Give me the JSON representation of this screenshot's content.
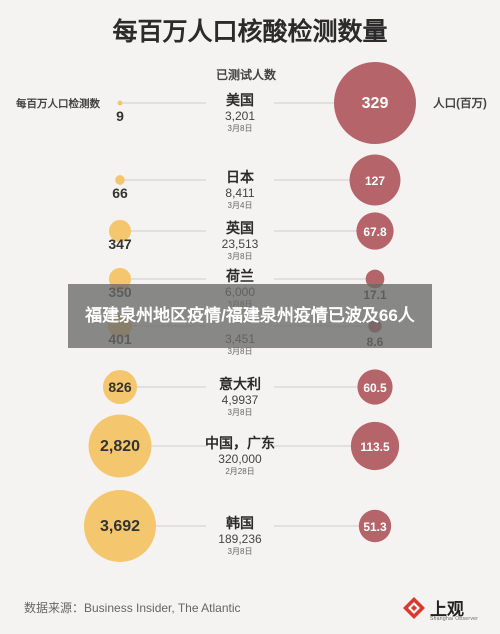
{
  "chart_data": {
    "type": "bubble",
    "title": "每百万人口核酸检测数量",
    "column_headers": {
      "left": "每百万人口检测数",
      "center": "已测试人数",
      "right": "人口(百万)"
    },
    "rows": [
      {
        "name": "美国",
        "tests_per_million": "9",
        "tested": "3,201",
        "date": "3月8日",
        "population": "329"
      },
      {
        "name": "日本",
        "tests_per_million": "66",
        "tested": "8,411",
        "date": "3月4日",
        "population": "127"
      },
      {
        "name": "英国",
        "tests_per_million": "347",
        "tested": "23,513",
        "date": "3月8日",
        "population": "67.8"
      },
      {
        "name": "荷兰",
        "tests_per_million": "350",
        "tested": "6,000",
        "date": "3月8日",
        "population": "17.1"
      },
      {
        "name": "",
        "tests_per_million": "401",
        "tested": "3,451",
        "date": "3月8日",
        "population": "8.6"
      },
      {
        "name": "意大利",
        "tests_per_million": "826",
        "tested": "4,9937",
        "date": "3月8日",
        "population": "60.5"
      },
      {
        "name": "中国，广东",
        "tests_per_million": "2,820",
        "tested": "320,000",
        "date": "2月28日",
        "population": "113.5"
      },
      {
        "name": "韩国",
        "tests_per_million": "3,692",
        "tested": "189,236",
        "date": "3月8日",
        "population": "51.3"
      }
    ],
    "left_values": [
      9,
      66,
      347,
      350,
      401,
      826,
      2820,
      3692
    ],
    "right_values": [
      329,
      127,
      67.8,
      17.1,
      8.6,
      60.5,
      113.5,
      51.3
    ],
    "colors": {
      "left": "#f4c76e",
      "right": "#b5646a",
      "line": "#cccccc"
    }
  },
  "banner": {
    "text": "福建泉州地区疫情/福建泉州疫情已波及66人"
  },
  "source": {
    "text": "数据来源：Business Insider, The Atlantic"
  },
  "logo": {
    "text": "上观",
    "sub": "Shanghai Observer"
  }
}
